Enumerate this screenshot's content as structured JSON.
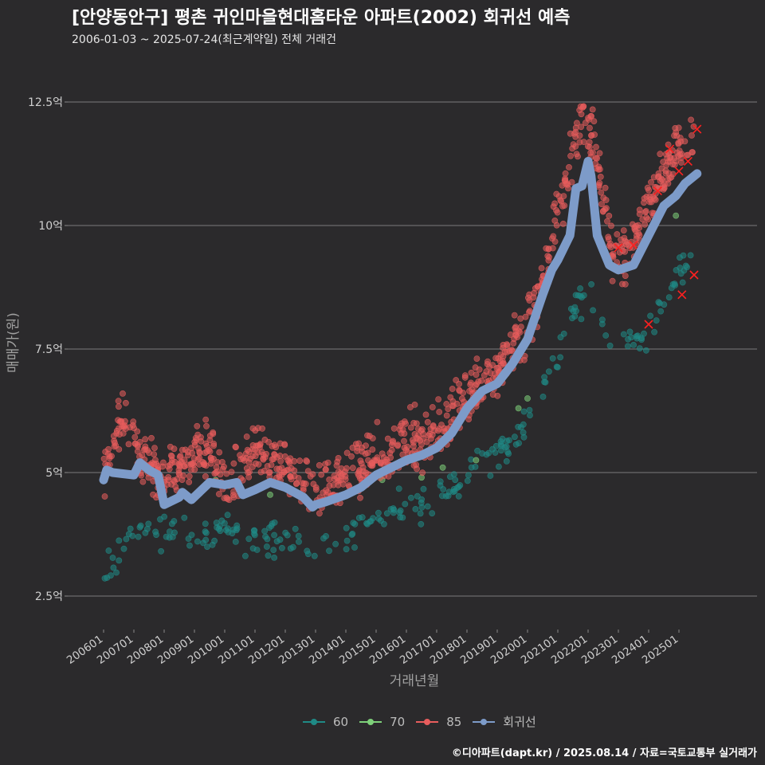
{
  "chart_data": {
    "type": "scatter",
    "title": "[안양동안구] 평촌 귀인마을현대홈타운 아파트(2002) 회귀선 예측",
    "subtitle": "2006-01-03 ~ 2025-07-24(최근계약일) 전체 거래건",
    "xlabel": "거래년월",
    "ylabel": "매매가(원)",
    "ylim": [
      2.0,
      13.3
    ],
    "xlim": [
      2006.0,
      2025.9
    ],
    "y_ticks": [
      {
        "value": 2.5,
        "label": "2.5억"
      },
      {
        "value": 5,
        "label": "5억"
      },
      {
        "value": 7.5,
        "label": "7.5억"
      },
      {
        "value": 10,
        "label": "10억"
      },
      {
        "value": 12.5,
        "label": "12.5억"
      }
    ],
    "x_ticks": [
      {
        "value": 2006.0,
        "label": "200601"
      },
      {
        "value": 2007.0,
        "label": "200701"
      },
      {
        "value": 2008.0,
        "label": "200801"
      },
      {
        "value": 2009.0,
        "label": "200901"
      },
      {
        "value": 2010.0,
        "label": "201001"
      },
      {
        "value": 2011.0,
        "label": "201101"
      },
      {
        "value": 2012.0,
        "label": "201201"
      },
      {
        "value": 2013.0,
        "label": "201301"
      },
      {
        "value": 2014.0,
        "label": "201401"
      },
      {
        "value": 2015.0,
        "label": "201501"
      },
      {
        "value": 2016.0,
        "label": "201601"
      },
      {
        "value": 2017.0,
        "label": "201701"
      },
      {
        "value": 2018.0,
        "label": "201801"
      },
      {
        "value": 2019.0,
        "label": "201901"
      },
      {
        "value": 2020.0,
        "label": "202001"
      },
      {
        "value": 2021.0,
        "label": "202101"
      },
      {
        "value": 2022.0,
        "label": "202201"
      },
      {
        "value": 2023.0,
        "label": "202301"
      },
      {
        "value": 2024.0,
        "label": "202401"
      },
      {
        "value": 2025.0,
        "label": "202501"
      }
    ],
    "grid": true,
    "legend_position": "bottom",
    "series": [
      {
        "name": "60",
        "color": "#1f8a86",
        "anchors": [
          [
            2006.0,
            3.0
          ],
          [
            2007.0,
            3.8
          ],
          [
            2008.0,
            3.8
          ],
          [
            2009.0,
            3.7
          ],
          [
            2010.0,
            3.8
          ],
          [
            2011.0,
            3.7
          ],
          [
            2012.0,
            3.6
          ],
          [
            2013.0,
            3.5
          ],
          [
            2014.0,
            3.7
          ],
          [
            2015.0,
            4.1
          ],
          [
            2016.0,
            4.3
          ],
          [
            2017.0,
            4.5
          ],
          [
            2018.0,
            4.9
          ],
          [
            2019.0,
            5.4
          ],
          [
            2020.0,
            5.9
          ],
          [
            2021.0,
            7.5
          ],
          [
            2021.5,
            8.3
          ],
          [
            2022.0,
            8.6
          ],
          [
            2023.0,
            7.5
          ],
          [
            2024.0,
            7.9
          ],
          [
            2025.0,
            9.0
          ],
          [
            2025.6,
            9.4
          ]
        ],
        "spread": 0.35
      },
      {
        "name": "70",
        "color": "#7ed07a",
        "points": [
          [
            2009.7,
            4.85
          ],
          [
            2011.5,
            4.55
          ],
          [
            2015.2,
            4.85
          ],
          [
            2016.5,
            4.9
          ],
          [
            2017.2,
            5.1
          ],
          [
            2018.3,
            5.25
          ],
          [
            2019.7,
            6.3
          ],
          [
            2020.0,
            6.5
          ],
          [
            2024.9,
            10.2
          ]
        ],
        "spread": 0
      },
      {
        "name": "85",
        "color": "#e85d5d",
        "anchors": [
          [
            2006.0,
            4.9
          ],
          [
            2006.6,
            6.2
          ],
          [
            2007.3,
            5.2
          ],
          [
            2008.0,
            4.9
          ],
          [
            2009.0,
            5.3
          ],
          [
            2009.5,
            5.6
          ],
          [
            2010.0,
            4.7
          ],
          [
            2011.0,
            5.3
          ],
          [
            2012.0,
            5.2
          ],
          [
            2013.0,
            4.5
          ],
          [
            2014.0,
            4.9
          ],
          [
            2015.0,
            5.3
          ],
          [
            2016.0,
            5.6
          ],
          [
            2017.0,
            5.8
          ],
          [
            2018.0,
            6.5
          ],
          [
            2019.0,
            7.1
          ],
          [
            2020.0,
            8.0
          ],
          [
            2020.6,
            9.0
          ],
          [
            2021.0,
            10.3
          ],
          [
            2021.4,
            11.2
          ],
          [
            2021.8,
            12.2
          ],
          [
            2022.3,
            11.5
          ],
          [
            2022.8,
            9.4
          ],
          [
            2023.3,
            9.4
          ],
          [
            2023.8,
            10.2
          ],
          [
            2024.3,
            10.8
          ],
          [
            2024.8,
            11.4
          ],
          [
            2025.5,
            11.8
          ]
        ],
        "spread": 0.55
      },
      {
        "name": "회귀선",
        "color": "#7d9bc9",
        "points": [
          [
            2006.0,
            4.85
          ],
          [
            2006.1,
            5.05
          ],
          [
            2006.3,
            5.0
          ],
          [
            2007.0,
            4.95
          ],
          [
            2007.2,
            5.2
          ],
          [
            2007.5,
            5.05
          ],
          [
            2007.8,
            4.95
          ],
          [
            2008.0,
            4.35
          ],
          [
            2008.5,
            4.5
          ],
          [
            2008.6,
            4.6
          ],
          [
            2008.9,
            4.45
          ],
          [
            2009.5,
            4.8
          ],
          [
            2010.0,
            4.75
          ],
          [
            2010.4,
            4.8
          ],
          [
            2010.6,
            4.55
          ],
          [
            2011.0,
            4.65
          ],
          [
            2011.5,
            4.8
          ],
          [
            2012.0,
            4.7
          ],
          [
            2012.6,
            4.5
          ],
          [
            2012.9,
            4.3
          ],
          [
            2013.0,
            4.35
          ],
          [
            2013.3,
            4.4
          ],
          [
            2014.0,
            4.55
          ],
          [
            2014.5,
            4.7
          ],
          [
            2015.0,
            4.95
          ],
          [
            2015.5,
            5.1
          ],
          [
            2016.0,
            5.25
          ],
          [
            2016.5,
            5.35
          ],
          [
            2017.0,
            5.5
          ],
          [
            2017.5,
            5.8
          ],
          [
            2018.0,
            6.3
          ],
          [
            2018.5,
            6.65
          ],
          [
            2019.0,
            6.8
          ],
          [
            2019.5,
            7.2
          ],
          [
            2020.0,
            7.7
          ],
          [
            2020.5,
            8.6
          ],
          [
            2020.8,
            9.1
          ],
          [
            2021.0,
            9.3
          ],
          [
            2021.4,
            9.8
          ],
          [
            2021.6,
            10.75
          ],
          [
            2021.8,
            10.8
          ],
          [
            2022.0,
            11.3
          ],
          [
            2022.1,
            11.0
          ],
          [
            2022.3,
            9.8
          ],
          [
            2022.5,
            9.5
          ],
          [
            2022.7,
            9.2
          ],
          [
            2023.0,
            9.1
          ],
          [
            2023.5,
            9.2
          ],
          [
            2024.0,
            9.8
          ],
          [
            2024.5,
            10.4
          ],
          [
            2024.9,
            10.6
          ],
          [
            2025.2,
            10.85
          ],
          [
            2025.6,
            11.05
          ]
        ]
      }
    ]
  },
  "legend": {
    "items": [
      {
        "label": "60",
        "color": "#1f8a86"
      },
      {
        "label": "70",
        "color": "#7ed07a"
      },
      {
        "label": "85",
        "color": "#e85d5d"
      },
      {
        "label": "회귀선",
        "color": "#7d9bc9"
      }
    ]
  },
  "caption": "©디아파트(dapt.kr) / 2025.08.14 / 자료=국토교통부 실거래가"
}
